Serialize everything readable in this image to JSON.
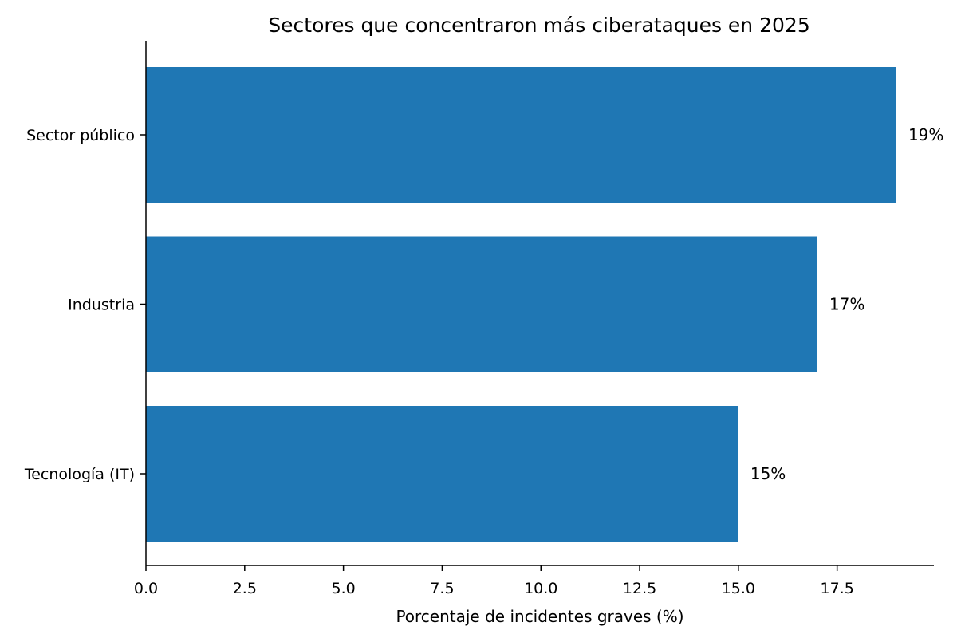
{
  "chart_data": {
    "type": "bar",
    "orientation": "horizontal",
    "title": "Sectores que concentraron más ciberataques en 2025",
    "xlabel": "Porcentaje de incidentes graves (%)",
    "ylabel": "",
    "categories": [
      "Sector público",
      "Industria",
      "Tecnología (IT)"
    ],
    "values": [
      19,
      17,
      15
    ],
    "data_labels": [
      "19%",
      "17%",
      "15%"
    ],
    "xlim": [
      0,
      19.95
    ],
    "xticks": [
      0.0,
      2.5,
      5.0,
      7.5,
      10.0,
      12.5,
      15.0,
      17.5
    ],
    "xtick_labels": [
      "0.0",
      "2.5",
      "5.0",
      "7.5",
      "10.0",
      "12.5",
      "15.0",
      "17.5"
    ],
    "grid": false,
    "legend": "none",
    "bar_color": "#1f77b4"
  }
}
